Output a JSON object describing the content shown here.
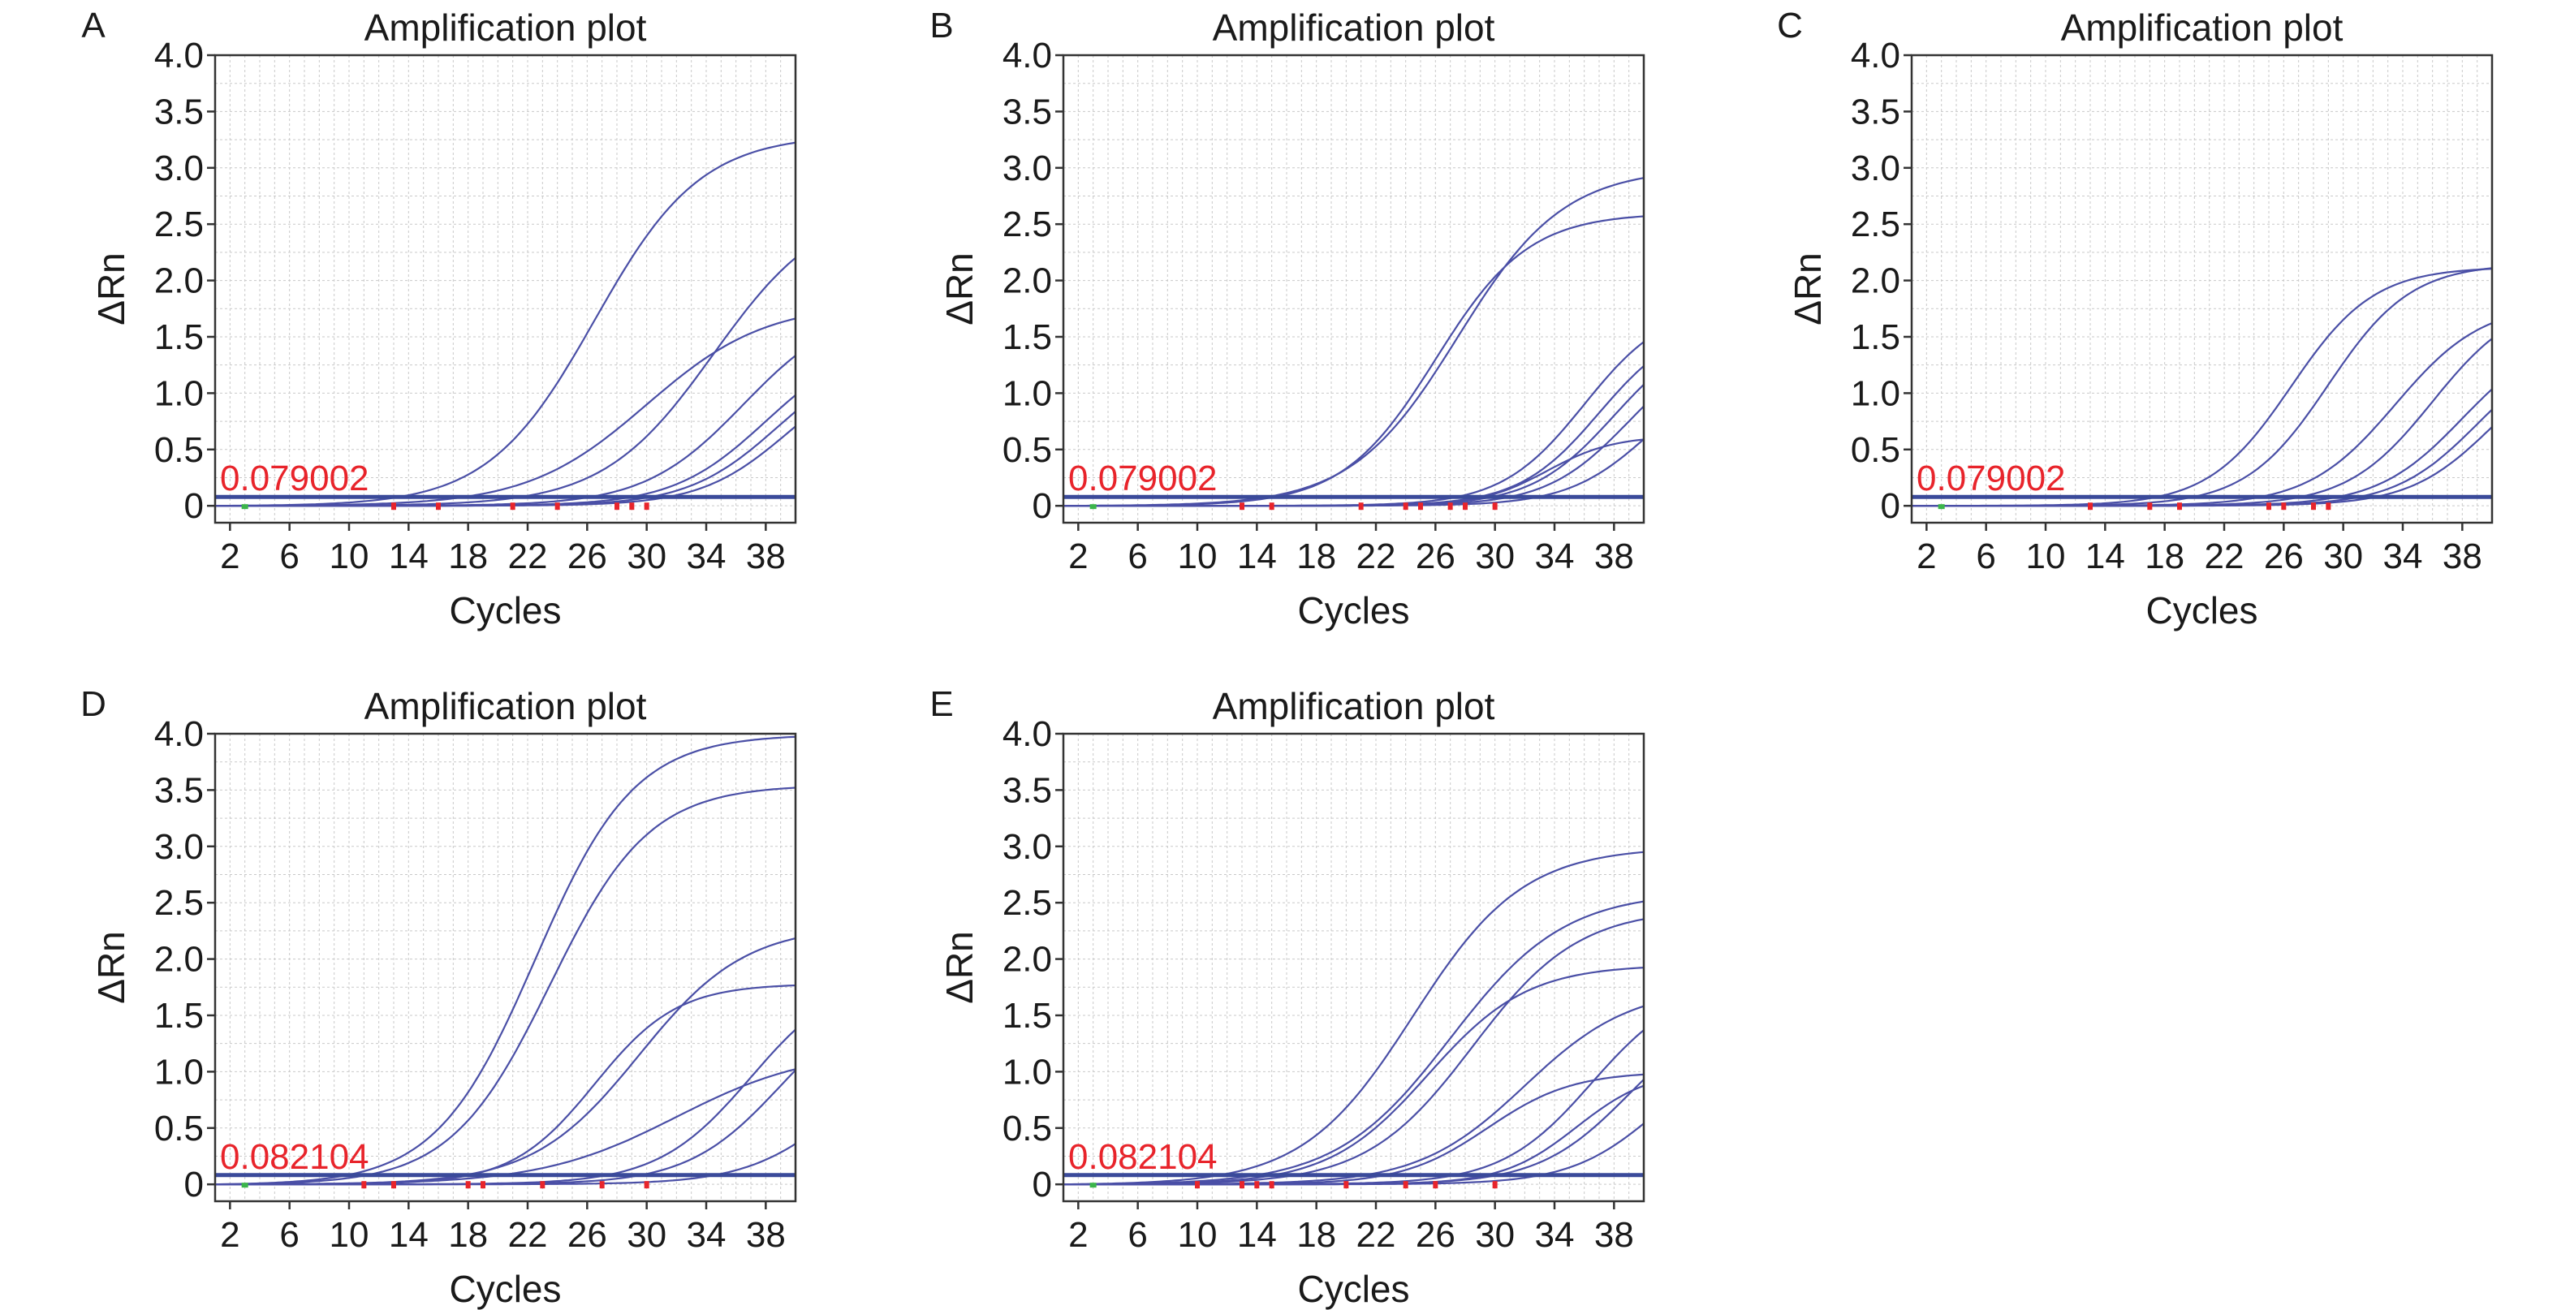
{
  "chart_data": [
    {
      "panel_label": "A",
      "type": "line",
      "title": "Amplification plot",
      "xlabel": "Cycles",
      "ylabel": "ΔRn",
      "xlim": [
        1,
        40
      ],
      "ylim": [
        -0.15,
        4.0
      ],
      "xticks": [
        2,
        6,
        10,
        14,
        18,
        22,
        26,
        30,
        34,
        38
      ],
      "yticks": [
        0,
        0.5,
        1.0,
        1.5,
        2.0,
        2.5,
        3.0,
        3.5,
        4.0
      ],
      "ytick_labels": [
        "0",
        "0.5",
        "1.0",
        "1.5",
        "2.0",
        "2.5",
        "3.0",
        "3.5",
        "4.0"
      ],
      "grid": true,
      "threshold": 0.079002,
      "threshold_label": "0.079002",
      "baseline_start": 3,
      "baseline_end_markers": [
        13,
        16,
        21,
        24,
        28,
        29,
        30
      ],
      "curves": [
        {
          "ct": 18.5,
          "plateau": 3.3,
          "k": 0.28
        },
        {
          "ct": 22.0,
          "plateau": 1.8,
          "k": 0.25
        },
        {
          "ct": 26.5,
          "plateau": 2.7,
          "k": 0.27
        },
        {
          "ct": 28.5,
          "plateau": 1.8,
          "k": 0.3
        },
        {
          "ct": 30.0,
          "plateau": 1.5,
          "k": 0.32
        },
        {
          "ct": 30.8,
          "plateau": 1.4,
          "k": 0.33
        },
        {
          "ct": 31.5,
          "plateau": 1.3,
          "k": 0.34
        }
      ]
    },
    {
      "panel_label": "B",
      "type": "line",
      "title": "Amplification plot",
      "xlabel": "Cycles",
      "ylabel": "ΔRn",
      "xlim": [
        1,
        40
      ],
      "ylim": [
        -0.15,
        4.0
      ],
      "xticks": [
        2,
        6,
        10,
        14,
        18,
        22,
        26,
        30,
        34,
        38
      ],
      "yticks": [
        0,
        0.5,
        1.0,
        1.5,
        2.0,
        2.5,
        3.0,
        3.5,
        4.0
      ],
      "ytick_labels": [
        "0",
        "0.5",
        "1.0",
        "1.5",
        "2.0",
        "2.5",
        "3.0",
        "3.5",
        "4.0"
      ],
      "grid": true,
      "threshold": 0.079002,
      "threshold_label": "0.079002",
      "baseline_start": 3,
      "baseline_end_markers": [
        13,
        15,
        21,
        24,
        25,
        27,
        28,
        30
      ],
      "curves": [
        {
          "ct": 18.0,
          "plateau": 2.6,
          "k": 0.32
        },
        {
          "ct": 19.5,
          "plateau": 3.0,
          "k": 0.28
        },
        {
          "ct": 25.5,
          "plateau": 0.62,
          "k": 0.45
        },
        {
          "ct": 28.0,
          "plateau": 1.8,
          "k": 0.36
        },
        {
          "ct": 29.0,
          "plateau": 1.65,
          "k": 0.37
        },
        {
          "ct": 30.0,
          "plateau": 1.6,
          "k": 0.36
        },
        {
          "ct": 31.0,
          "plateau": 1.5,
          "k": 0.36
        },
        {
          "ct": 32.5,
          "plateau": 1.3,
          "k": 0.36
        }
      ]
    },
    {
      "panel_label": "C",
      "type": "line",
      "title": "Amplification plot",
      "xlabel": "Cycles",
      "ylabel": "ΔRn",
      "xlim": [
        1,
        40
      ],
      "ylim": [
        -0.15,
        4.0
      ],
      "xticks": [
        2,
        6,
        10,
        14,
        18,
        22,
        26,
        30,
        34,
        38
      ],
      "yticks": [
        0,
        0.5,
        1.0,
        1.5,
        2.0,
        2.5,
        3.0,
        3.5,
        4.0
      ],
      "ytick_labels": [
        "0",
        "0.5",
        "1.0",
        "1.5",
        "2.0",
        "2.5",
        "3.0",
        "3.5",
        "4.0"
      ],
      "grid": true,
      "threshold": 0.079002,
      "threshold_label": "0.079002",
      "baseline_start": 3,
      "baseline_end_markers": [
        13,
        17,
        19,
        25,
        26,
        28,
        29
      ],
      "curves": [
        {
          "ct": 18.5,
          "plateau": 2.12,
          "k": 0.36
        },
        {
          "ct": 21.0,
          "plateau": 2.15,
          "k": 0.36
        },
        {
          "ct": 25.5,
          "plateau": 1.8,
          "k": 0.34
        },
        {
          "ct": 28.0,
          "plateau": 1.85,
          "k": 0.35
        },
        {
          "ct": 30.0,
          "plateau": 1.55,
          "k": 0.35
        },
        {
          "ct": 31.0,
          "plateau": 1.45,
          "k": 0.36
        },
        {
          "ct": 32.0,
          "plateau": 1.4,
          "k": 0.36
        }
      ]
    },
    {
      "panel_label": "D",
      "type": "line",
      "title": "Amplification plot",
      "xlabel": "Cycles",
      "ylabel": "ΔRn",
      "xlim": [
        1,
        40
      ],
      "ylim": [
        -0.15,
        4.0
      ],
      "xticks": [
        2,
        6,
        10,
        14,
        18,
        22,
        26,
        30,
        34,
        38
      ],
      "yticks": [
        0,
        0.5,
        1.0,
        1.5,
        2.0,
        2.5,
        3.0,
        3.5,
        4.0
      ],
      "ytick_labels": [
        "0",
        "0.5",
        "1.0",
        "1.5",
        "2.0",
        "2.5",
        "3.0",
        "3.5",
        "4.0"
      ],
      "grid": true,
      "threshold": 0.082104,
      "threshold_label": "0.082104",
      "baseline_start": 3,
      "baseline_end_markers": [
        11,
        13,
        18,
        19,
        23,
        27,
        30
      ],
      "curves": [
        {
          "ct": 14.5,
          "plateau": 4.0,
          "k": 0.3
        },
        {
          "ct": 15.5,
          "plateau": 3.55,
          "k": 0.3
        },
        {
          "ct": 18.5,
          "plateau": 1.78,
          "k": 0.36
        },
        {
          "ct": 21.5,
          "plateau": 2.3,
          "k": 0.28
        },
        {
          "ct": 24.0,
          "plateau": 1.2,
          "k": 0.22
        },
        {
          "ct": 29.0,
          "plateau": 1.9,
          "k": 0.32
        },
        {
          "ct": 31.0,
          "plateau": 1.75,
          "k": 0.32
        },
        {
          "ct": 35.0,
          "plateau": 1.3,
          "k": 0.32
        }
      ]
    },
    {
      "panel_label": "E",
      "type": "line",
      "title": "Amplification plot",
      "xlabel": "Cycles",
      "ylabel": "ΔRn",
      "xlim": [
        1,
        40
      ],
      "ylim": [
        -0.15,
        4.0
      ],
      "xticks": [
        2,
        6,
        10,
        14,
        18,
        22,
        26,
        30,
        34,
        38
      ],
      "yticks": [
        0,
        0.5,
        1.0,
        1.5,
        2.0,
        2.5,
        3.0,
        3.5,
        4.0
      ],
      "ytick_labels": [
        "0",
        "0.5",
        "1.0",
        "1.5",
        "2.0",
        "2.5",
        "3.0",
        "3.5",
        "4.0"
      ],
      "grid": true,
      "threshold": 0.082104,
      "threshold_label": "0.082104",
      "baseline_start": 3,
      "baseline_end_markers": [
        10,
        13,
        14,
        15,
        20,
        24,
        26,
        30
      ],
      "curves": [
        {
          "ct": 16.5,
          "plateau": 3.0,
          "k": 0.27
        },
        {
          "ct": 17.5,
          "plateau": 1.95,
          "k": 0.3
        },
        {
          "ct": 19.0,
          "plateau": 2.6,
          "k": 0.26
        },
        {
          "ct": 20.5,
          "plateau": 2.45,
          "k": 0.28
        },
        {
          "ct": 21.5,
          "plateau": 1.0,
          "k": 0.35
        },
        {
          "ct": 24.0,
          "plateau": 1.75,
          "k": 0.28
        },
        {
          "ct": 27.5,
          "plateau": 1.02,
          "k": 0.4
        },
        {
          "ct": 28.5,
          "plateau": 1.8,
          "k": 0.33
        },
        {
          "ct": 31.0,
          "plateau": 1.6,
          "k": 0.33
        },
        {
          "ct": 33.0,
          "plateau": 1.3,
          "k": 0.34
        }
      ]
    }
  ],
  "colors": {
    "curve": "#4a4fa6",
    "threshold_line": "#3a4a9a",
    "threshold_text": "#e8242b",
    "marker_start": "#3bb54a",
    "marker_end": "#e8242b",
    "grid": "#c9c9c9",
    "text": "#1a1a1a"
  }
}
